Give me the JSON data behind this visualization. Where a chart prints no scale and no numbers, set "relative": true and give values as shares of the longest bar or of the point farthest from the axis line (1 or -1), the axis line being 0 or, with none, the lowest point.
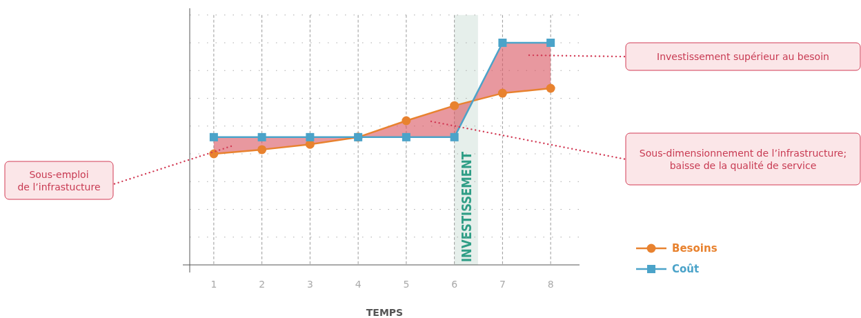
{
  "chart_data": {
    "type": "line",
    "relative": true,
    "xlabel": "TEMPS",
    "x": [
      1,
      2,
      3,
      4,
      5,
      6,
      7,
      8
    ],
    "xlim": [
      0.5,
      8.6
    ],
    "xticks": [
      1,
      2,
      3,
      4,
      5,
      6,
      7,
      8
    ],
    "grid": true,
    "legend": "bottom right",
    "line_style": "solid",
    "series": [
      {
        "name": "Besoins",
        "color": "#e8822f",
        "marker": "circle",
        "values": [
          0.5,
          0.519,
          0.543,
          0.575,
          0.649,
          0.717,
          0.773,
          0.795
        ]
      },
      {
        "name": "Coût",
        "color": "#4ba3c9",
        "marker": "square",
        "values": [
          0.575,
          0.575,
          0.575,
          0.575,
          0.575,
          0.575,
          1,
          1
        ]
      }
    ],
    "bands": [
      {
        "axis": "x",
        "from": 6,
        "to": 6.49,
        "label": "INVESTISSEMENT",
        "color": "#e6efeb"
      }
    ],
    "annotations": [
      "Investissement supérieur au besoin",
      "Sous-dimensionnement de l’infrastructure;\nbaisse de la qualité de service",
      "Sous-emploi\nde l’infrastucture"
    ]
  }
}
